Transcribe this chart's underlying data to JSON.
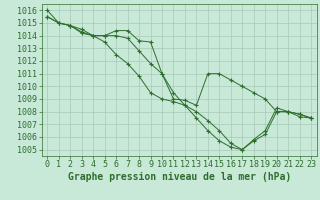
{
  "title": "Graphe pression niveau de la mer (hPa)",
  "bg_color": "#c8e8d8",
  "grid_color": "#a8c8b8",
  "line_color": "#2d6e2d",
  "marker": "+",
  "ylim": [
    1004.5,
    1016.5
  ],
  "xlim": [
    -0.5,
    23.5
  ],
  "yticks": [
    1005,
    1006,
    1007,
    1008,
    1009,
    1010,
    1011,
    1012,
    1013,
    1014,
    1015,
    1016
  ],
  "xticks": [
    0,
    1,
    2,
    3,
    4,
    5,
    6,
    7,
    8,
    9,
    10,
    11,
    12,
    13,
    14,
    15,
    16,
    17,
    18,
    19,
    20,
    21,
    22,
    23
  ],
  "line1": [
    1015.5,
    1015.0,
    1014.8,
    1014.5,
    1014.0,
    1014.0,
    1014.4,
    1014.4,
    1013.6,
    1013.5,
    1011.0,
    1009.0,
    1008.9,
    1008.5,
    1011.0,
    1011.0,
    1010.5,
    1010.0,
    1009.5,
    1009.0,
    1008.0,
    1008.0,
    1007.6,
    1007.5
  ],
  "line2": [
    1015.5,
    1015.0,
    1014.8,
    1014.3,
    1014.0,
    1014.0,
    1014.0,
    1013.8,
    1012.8,
    1011.8,
    1011.0,
    1009.5,
    1008.5,
    1007.5,
    1006.5,
    1005.7,
    1005.2,
    1005.0,
    1005.7,
    1006.2,
    1008.0,
    1008.0,
    1007.8,
    1007.5
  ],
  "line3": [
    1016.0,
    1015.0,
    1014.8,
    1014.2,
    1014.0,
    1013.5,
    1012.5,
    1011.8,
    1010.8,
    1009.5,
    1009.0,
    1008.8,
    1008.5,
    1008.0,
    1007.3,
    1006.5,
    1005.5,
    1005.0,
    1005.8,
    1006.5,
    1008.3,
    1008.0,
    1007.8,
    1007.5
  ],
  "xlabel_fontsize": 6,
  "ylabel_fontsize": 6,
  "title_fontsize": 7
}
